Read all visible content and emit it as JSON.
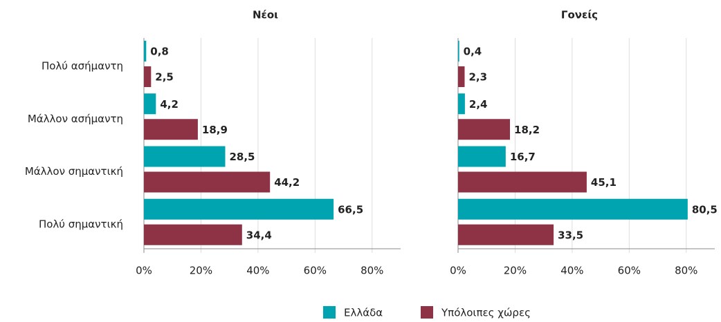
{
  "chart_data": [
    {
      "type": "bar",
      "title": "Νέοι",
      "orientation": "horizontal",
      "categories": [
        "Πολύ ασήμαντη",
        "Μάλλον ασήμαντη",
        "Μάλλον σημαντική",
        "Πολύ σημαντική"
      ],
      "series": [
        {
          "name": "Ελλάδα",
          "color": "#00a3b0",
          "values": [
            0.8,
            4.2,
            28.5,
            66.5
          ],
          "value_labels": [
            "0,8",
            "4,2",
            "28,5",
            "66,5"
          ]
        },
        {
          "name": "Υπόλοιπες χώρες",
          "color": "#8e3246",
          "values": [
            2.5,
            18.9,
            44.2,
            34.4
          ],
          "value_labels": [
            "2,5",
            "18,9",
            "44,2",
            "34,4"
          ]
        }
      ],
      "xlim": [
        0,
        90
      ],
      "xticks": [
        {
          "value": 0,
          "label": "0%"
        },
        {
          "value": 20,
          "label": "20%"
        },
        {
          "value": 40,
          "label": "40%"
        },
        {
          "value": 60,
          "label": "60%"
        },
        {
          "value": 80,
          "label": "80%"
        }
      ],
      "grid": true
    },
    {
      "type": "bar",
      "title": "Γονείς",
      "orientation": "horizontal",
      "series": [
        {
          "color": "#00a3b0",
          "values": [
            0.4,
            2.4,
            16.7,
            80.5
          ],
          "value_labels": [
            "0,4",
            "2,4",
            "16,7",
            "80,5"
          ]
        },
        {
          "color": "#8e3246",
          "values": [
            2.3,
            18.2,
            45.1,
            33.5
          ],
          "value_labels": [
            "2,3",
            "18,2",
            "45,1",
            "33,5"
          ]
        }
      ],
      "xlim": [
        0,
        90
      ],
      "xticks": [
        {
          "value": 0,
          "label": "0%"
        },
        {
          "value": 20,
          "label": "20%"
        },
        {
          "value": 40,
          "label": "40%"
        },
        {
          "value": 60,
          "label": "60%"
        },
        {
          "value": 80,
          "label": "80%"
        }
      ],
      "grid": true
    }
  ]
}
